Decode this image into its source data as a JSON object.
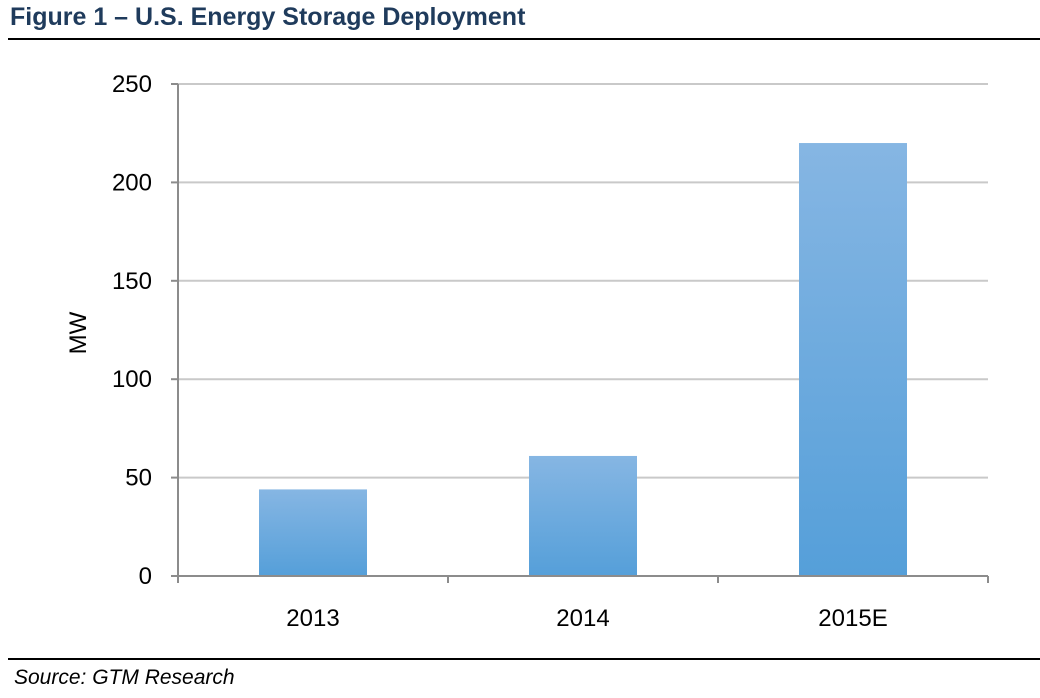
{
  "figure": {
    "title": "Figure 1 – U.S. Energy Storage Deployment",
    "source": "Source: GTM Research"
  },
  "chart_data": {
    "type": "bar",
    "title": "",
    "xlabel": "",
    "ylabel": "MW",
    "categories": [
      "2013",
      "2014",
      "2015E"
    ],
    "values": [
      44,
      61,
      220
    ],
    "ylim": [
      0,
      250
    ],
    "yticks": [
      0,
      50,
      100,
      150,
      200,
      250
    ],
    "grid": true,
    "legend": "none",
    "colors": {
      "bar_top": "#86b6e3",
      "bar_bottom": "#559fd9",
      "grid": "#c9c9c9",
      "axis": "#8c8c8c"
    }
  }
}
